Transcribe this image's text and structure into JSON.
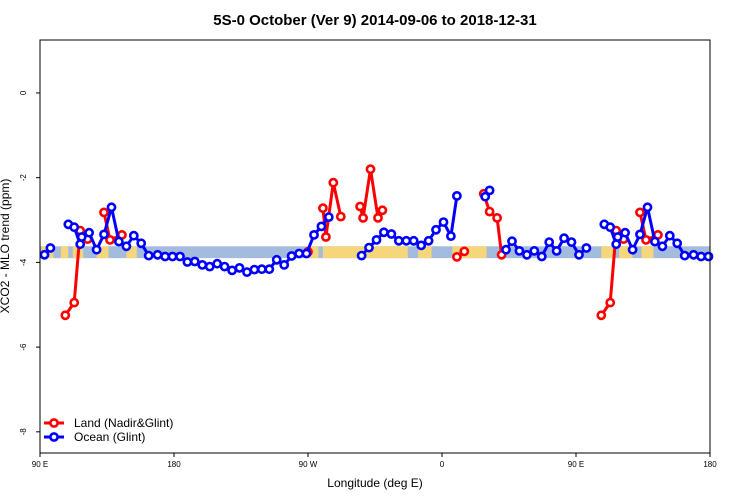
{
  "chart_data": {
    "type": "line",
    "title": "5S-0 October (Ver 9)   2014-09-06 to 2018-12-31",
    "xlabel": "Longitude (deg E)",
    "ylabel": "XCO2 - MLO trend (ppm)",
    "xlim": [
      0,
      450
    ],
    "ylim": [
      -8.5,
      1.25
    ],
    "x_ticks": [
      {
        "value": 0,
        "label": "90 E"
      },
      {
        "value": 90,
        "label": "180"
      },
      {
        "value": 180,
        "label": "90 W"
      },
      {
        "value": 270,
        "label": "0"
      },
      {
        "value": 360,
        "label": "90 E"
      },
      {
        "value": 450,
        "label": "180"
      }
    ],
    "y_ticks": [
      {
        "value": 0,
        "label": "0"
      },
      {
        "value": -2,
        "label": "-2"
      },
      {
        "value": -4,
        "label": "-4"
      },
      {
        "value": -6,
        "label": "-6"
      },
      {
        "value": -8,
        "label": "-8"
      }
    ],
    "band": {
      "y_range": [
        -3.9,
        -3.62
      ],
      "base_color": "#a3bbdc",
      "segments": [
        {
          "x": [
            1,
            9
          ],
          "color": "#f6d67a"
        },
        {
          "x": [
            14,
            19
          ],
          "color": "#f6d67a"
        },
        {
          "x": [
            22,
            29
          ],
          "color": "#f6d67a"
        },
        {
          "x": [
            38,
            46
          ],
          "color": "#f6d67a"
        },
        {
          "x": [
            58,
            65
          ],
          "color": "#f6d67a"
        },
        {
          "x": [
            180,
            187
          ],
          "color": "#f6d67a"
        },
        {
          "x": [
            190,
            247
          ],
          "color": "#f6d67a"
        },
        {
          "x": [
            254,
            263
          ],
          "color": "#f6d67a"
        },
        {
          "x": [
            277,
            300
          ],
          "color": "#f6d67a"
        },
        {
          "x": [
            377,
            386
          ],
          "color": "#f6d67a"
        },
        {
          "x": [
            389,
            398
          ],
          "color": "#f6d67a"
        },
        {
          "x": [
            404,
            412
          ],
          "color": "#f6d67a"
        }
      ]
    },
    "legend": {
      "placement": "bottom-left",
      "entries": [
        {
          "label": "Land (Nadir&Glint)",
          "color": "#ff0000"
        },
        {
          "label": "Ocean (Glint)",
          "color": "#0000ff"
        }
      ]
    },
    "series": [
      {
        "name": "Land (Nadir&Glint)",
        "color": "#ff0000",
        "segments": [
          [
            [
              17,
              -5.25
            ],
            [
              23,
              -4.95
            ],
            [
              27,
              -3.25
            ],
            [
              30,
              -3.4
            ],
            [
              32,
              -3.45
            ]
          ],
          [
            [
              43,
              -2.82
            ],
            [
              47,
              -3.47
            ],
            [
              55,
              -3.35
            ]
          ],
          [
            [
              180,
              -3.75
            ]
          ],
          [
            [
              190,
              -2.72
            ],
            [
              192,
              -3.4
            ],
            [
              197,
              -2.12
            ],
            [
              202,
              -2.92
            ]
          ],
          [
            [
              215,
              -2.68
            ],
            [
              217,
              -2.95
            ],
            [
              222,
              -1.8
            ],
            [
              227,
              -2.95
            ],
            [
              230,
              -2.77
            ]
          ],
          [
            [
              280,
              -3.87
            ],
            [
              285,
              -3.74
            ]
          ],
          [
            [
              298,
              -2.38
            ],
            [
              302,
              -2.8
            ],
            [
              307,
              -2.95
            ],
            [
              310,
              -3.82
            ]
          ],
          [
            [
              377,
              -5.25
            ],
            [
              383,
              -4.95
            ],
            [
              387,
              -3.25
            ],
            [
              390,
              -3.4
            ],
            [
              392,
              -3.45
            ]
          ],
          [
            [
              403,
              -2.82
            ],
            [
              407,
              -3.47
            ],
            [
              415,
              -3.35
            ]
          ]
        ]
      },
      {
        "name": "Ocean (Glint)",
        "color": "#0000ff",
        "segments": [
          [
            [
              3,
              -3.82
            ],
            [
              7,
              -3.66
            ]
          ],
          [
            [
              19,
              -3.1
            ],
            [
              23,
              -3.17
            ],
            [
              27,
              -3.57
            ],
            [
              28,
              -3.4
            ],
            [
              33,
              -3.3
            ],
            [
              38,
              -3.7
            ],
            [
              43,
              -3.34
            ],
            [
              48,
              -2.7
            ],
            [
              53,
              -3.51
            ],
            [
              58,
              -3.62
            ],
            [
              63,
              -3.37
            ],
            [
              68,
              -3.55
            ],
            [
              73,
              -3.84
            ],
            [
              79,
              -3.82
            ],
            [
              84,
              -3.86
            ],
            [
              89,
              -3.86
            ],
            [
              94,
              -3.86
            ],
            [
              99,
              -3.99
            ],
            [
              104,
              -3.98
            ],
            [
              109,
              -4.06
            ],
            [
              114,
              -4.1
            ],
            [
              119,
              -4.03
            ],
            [
              124,
              -4.1
            ],
            [
              129,
              -4.19
            ],
            [
              134,
              -4.13
            ],
            [
              139,
              -4.23
            ],
            [
              144,
              -4.17
            ],
            [
              149,
              -4.16
            ],
            [
              154,
              -4.16
            ],
            [
              159,
              -3.94
            ],
            [
              164,
              -4.06
            ],
            [
              169,
              -3.85
            ],
            [
              174,
              -3.79
            ],
            [
              179,
              -3.79
            ],
            [
              184,
              -3.35
            ],
            [
              189,
              -3.15
            ],
            [
              194,
              -2.93
            ]
          ],
          [
            [
              216,
              -3.84
            ],
            [
              221,
              -3.65
            ],
            [
              226,
              -3.47
            ],
            [
              231,
              -3.29
            ],
            [
              236,
              -3.33
            ],
            [
              241,
              -3.49
            ],
            [
              246,
              -3.49
            ],
            [
              251,
              -3.49
            ],
            [
              256,
              -3.6
            ],
            [
              261,
              -3.49
            ],
            [
              266,
              -3.23
            ],
            [
              271,
              -3.05
            ],
            [
              276,
              -3.38
            ],
            [
              280,
              -2.43
            ]
          ],
          [
            [
              299,
              -2.45
            ],
            [
              302,
              -2.3
            ]
          ],
          [
            [
              313,
              -3.7
            ],
            [
              317,
              -3.5
            ],
            [
              322,
              -3.73
            ],
            [
              327,
              -3.82
            ],
            [
              332,
              -3.73
            ],
            [
              337,
              -3.86
            ],
            [
              342,
              -3.52
            ],
            [
              347,
              -3.73
            ],
            [
              352,
              -3.43
            ],
            [
              357,
              -3.52
            ],
            [
              362,
              -3.82
            ],
            [
              367,
              -3.66
            ]
          ],
          [
            [
              379,
              -3.1
            ],
            [
              383,
              -3.17
            ],
            [
              387,
              -3.57
            ],
            [
              388,
              -3.4
            ],
            [
              393,
              -3.3
            ],
            [
              398,
              -3.7
            ],
            [
              403,
              -3.34
            ],
            [
              408,
              -2.7
            ],
            [
              413,
              -3.51
            ],
            [
              418,
              -3.62
            ],
            [
              423,
              -3.37
            ],
            [
              428,
              -3.55
            ],
            [
              433,
              -3.84
            ],
            [
              439,
              -3.82
            ],
            [
              444,
              -3.86
            ],
            [
              449,
              -3.86
            ]
          ]
        ]
      }
    ]
  }
}
